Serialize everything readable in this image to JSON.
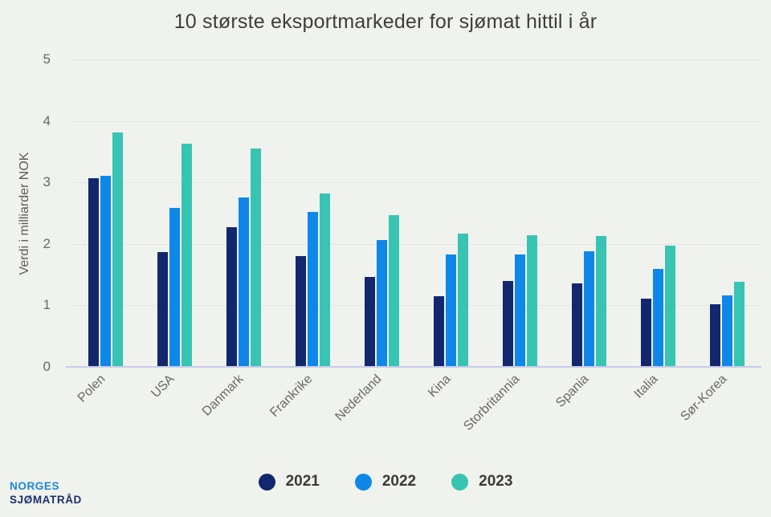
{
  "logo": {
    "line1": "NORGES",
    "line2": "SJØMATRÅD"
  },
  "colors": {
    "background": "#f0f2ee",
    "grid": "#e2e5e0",
    "baseline": "#c9cce9",
    "title_text": "#3d3d3d",
    "axis_text": "#686868",
    "legend_text": "#3a3a3a",
    "logo_line1": "#1d86da",
    "logo_line2": "#1c2f6d"
  },
  "chart_data": {
    "type": "bar",
    "title": "10 største eksportmarkeder for sjømat hittil i år",
    "xlabel": "",
    "ylabel": "Verdi i milliarder NOK",
    "ylim": [
      0,
      5
    ],
    "yticks": [
      0,
      1,
      2,
      3,
      4,
      5
    ],
    "grid": true,
    "legend_position": "bottom",
    "categories": [
      "Polen",
      "USA",
      "Danmark",
      "Frankrike",
      "Nederland",
      "Kina",
      "Storbritannia",
      "Spania",
      "Italia",
      "Sør-Korea"
    ],
    "series": [
      {
        "name": "2021",
        "color": "#12276e",
        "values": [
          3.05,
          1.85,
          2.26,
          1.79,
          1.45,
          1.14,
          1.39,
          1.35,
          1.1,
          1.01
        ]
      },
      {
        "name": "2022",
        "color": "#0e87e9",
        "values": [
          3.1,
          2.57,
          2.74,
          2.51,
          2.05,
          1.81,
          1.81,
          1.87,
          1.58,
          1.15
        ]
      },
      {
        "name": "2023",
        "color": "#37c4b3",
        "values": [
          3.8,
          3.62,
          3.54,
          2.81,
          2.45,
          2.15,
          2.13,
          2.11,
          1.96,
          1.37
        ]
      }
    ]
  }
}
